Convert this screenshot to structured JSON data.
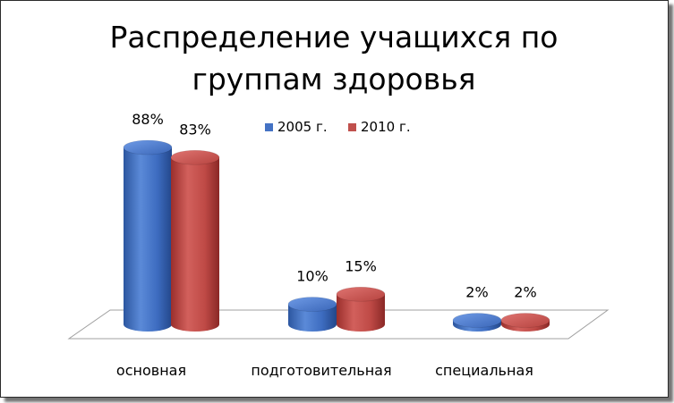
{
  "chart_data": {
    "type": "bar",
    "title_lines": [
      "Распределение учащихся по",
      "группам здоровья"
    ],
    "categories": [
      "основная",
      "подготовительная",
      "специальная"
    ],
    "series": [
      {
        "name": "2005 г.",
        "values": [
          88,
          10,
          2
        ],
        "labels": [
          "88%",
          "10%",
          "2%"
        ],
        "color": "#4472C4"
      },
      {
        "name": "2010 г.",
        "values": [
          83,
          15,
          2
        ],
        "labels": [
          "83%",
          "15%",
          "2%"
        ],
        "color": "#C0504D"
      }
    ],
    "ylim": [
      0,
      100
    ],
    "legend_position": "top",
    "grid": false,
    "style": "3d-cylinder"
  }
}
